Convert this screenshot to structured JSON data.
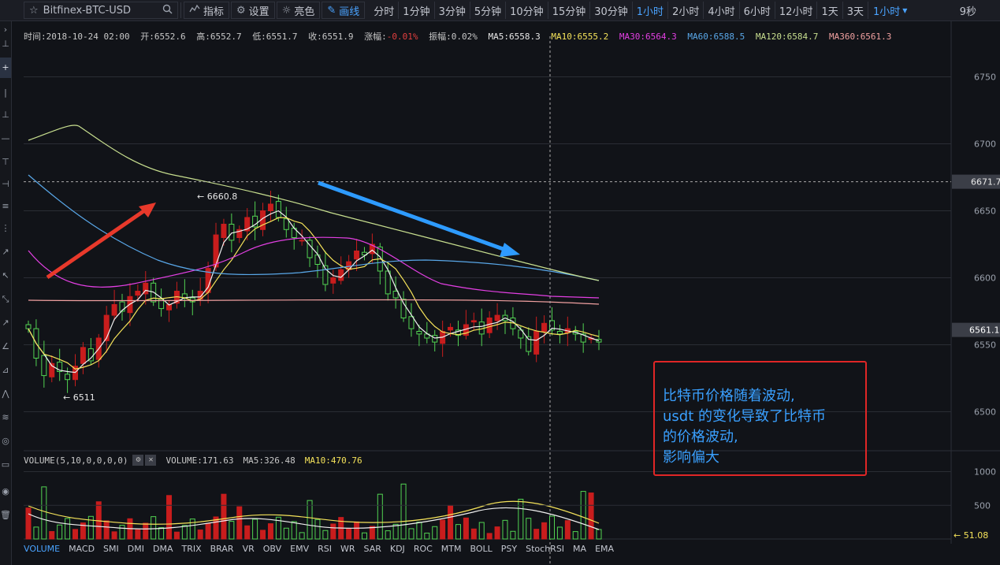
{
  "toolbar": {
    "symbol": "Bitfinex-BTC-USD",
    "indicators_label": "指标",
    "settings_label": "设置",
    "theme_label": "亮色",
    "draw_label": "画线",
    "periods": [
      "分时",
      "1分钟",
      "3分钟",
      "5分钟",
      "10分钟",
      "15分钟",
      "30分钟",
      "1小时",
      "2小时",
      "4小时",
      "6小时",
      "12小时",
      "1天",
      "3天"
    ],
    "active_period": "1小时",
    "period_dropdown": "1小时",
    "timer": "9秒"
  },
  "infobar": {
    "time": "时间:2018-10-24 02:00",
    "open": "开:6552.6",
    "high": "高:6552.7",
    "low": "低:6551.7",
    "close": "收:6551.9",
    "change_label": "涨幅:",
    "change_value": "-0.01%",
    "amplitude_label": "振幅:",
    "amplitude_value": "0.02%",
    "ma5": "MA5:6558.3",
    "ma10": "MA10:6555.2",
    "ma30": "MA30:6564.3",
    "ma60": "MA60:6588.5",
    "ma120": "MA120:6584.7",
    "ma360": "MA360:6561.3"
  },
  "colors": {
    "up": "#c81d1d",
    "down": "#52d352",
    "ma5": "#f0f0f0",
    "ma10": "#f5e35a",
    "ma30": "#e33fe3",
    "ma60": "#59a7e8",
    "ma120": "#c8df8f",
    "ma360": "#f0a0a0",
    "red_arrow": "#e8392b",
    "blue_arrow": "#2e9bff",
    "note_border": "#e02626",
    "note_text": "#3aa0ff"
  },
  "price_axis": {
    "ticks": [
      "6750",
      "6700",
      "6650",
      "6600",
      "6550",
      "6500"
    ],
    "crosshair_label": "6671.7",
    "last_price_label": "6561.1"
  },
  "annotations": {
    "high_label": "← 6660.8",
    "low_label": "← 6511"
  },
  "note": {
    "lines": [
      "比特币价格随着波动,",
      "usdt 的变化导致了比特币",
      "的价格波动,",
      "影响偏大"
    ]
  },
  "volume": {
    "title": "VOLUME(5,10,0,0,0,0)",
    "value": "VOLUME:171.63",
    "ma5": "MA5:326.48",
    "ma10": "MA10:470.76",
    "ticks": [
      "1000",
      "500"
    ],
    "last_label": "← 51.08"
  },
  "indicator_tabs": [
    "VOLUME",
    "MACD",
    "SMI",
    "DMI",
    "DMA",
    "TRIX",
    "BRAR",
    "VR",
    "OBV",
    "EMV",
    "RSI",
    "WR",
    "SAR",
    "KDJ",
    "ROC",
    "MTM",
    "BOLL",
    "PSY",
    "StochRSI",
    "MA",
    "EMA"
  ],
  "active_indicator": "VOLUME",
  "chart_data": {
    "type": "candlestick",
    "title": "Bitfinex-BTC-USD",
    "ylim": [
      6475,
      6775
    ],
    "candles_close": [
      6562,
      6540,
      6527,
      6536,
      6530,
      6524,
      6534,
      6548,
      6538,
      6555,
      6572,
      6580,
      6575,
      6586,
      6590,
      6596,
      6582,
      6577,
      6580,
      6590,
      6585,
      6582,
      6590,
      6607,
      6632,
      6640,
      6628,
      6636,
      6645,
      6638,
      6650,
      6655,
      6645,
      6636,
      6630,
      6628,
      6615,
      6610,
      6595,
      6600,
      6606,
      6612,
      6620,
      6617,
      6625,
      6605,
      6588,
      6585,
      6570,
      6562,
      6558,
      6555,
      6552,
      6560,
      6563,
      6557,
      6565,
      6568,
      6558,
      6570,
      6572,
      6568,
      6562,
      6555,
      6545,
      6560,
      6566,
      6561,
      6558,
      6562,
      6558,
      6552,
      6555,
      6552
    ]
  }
}
